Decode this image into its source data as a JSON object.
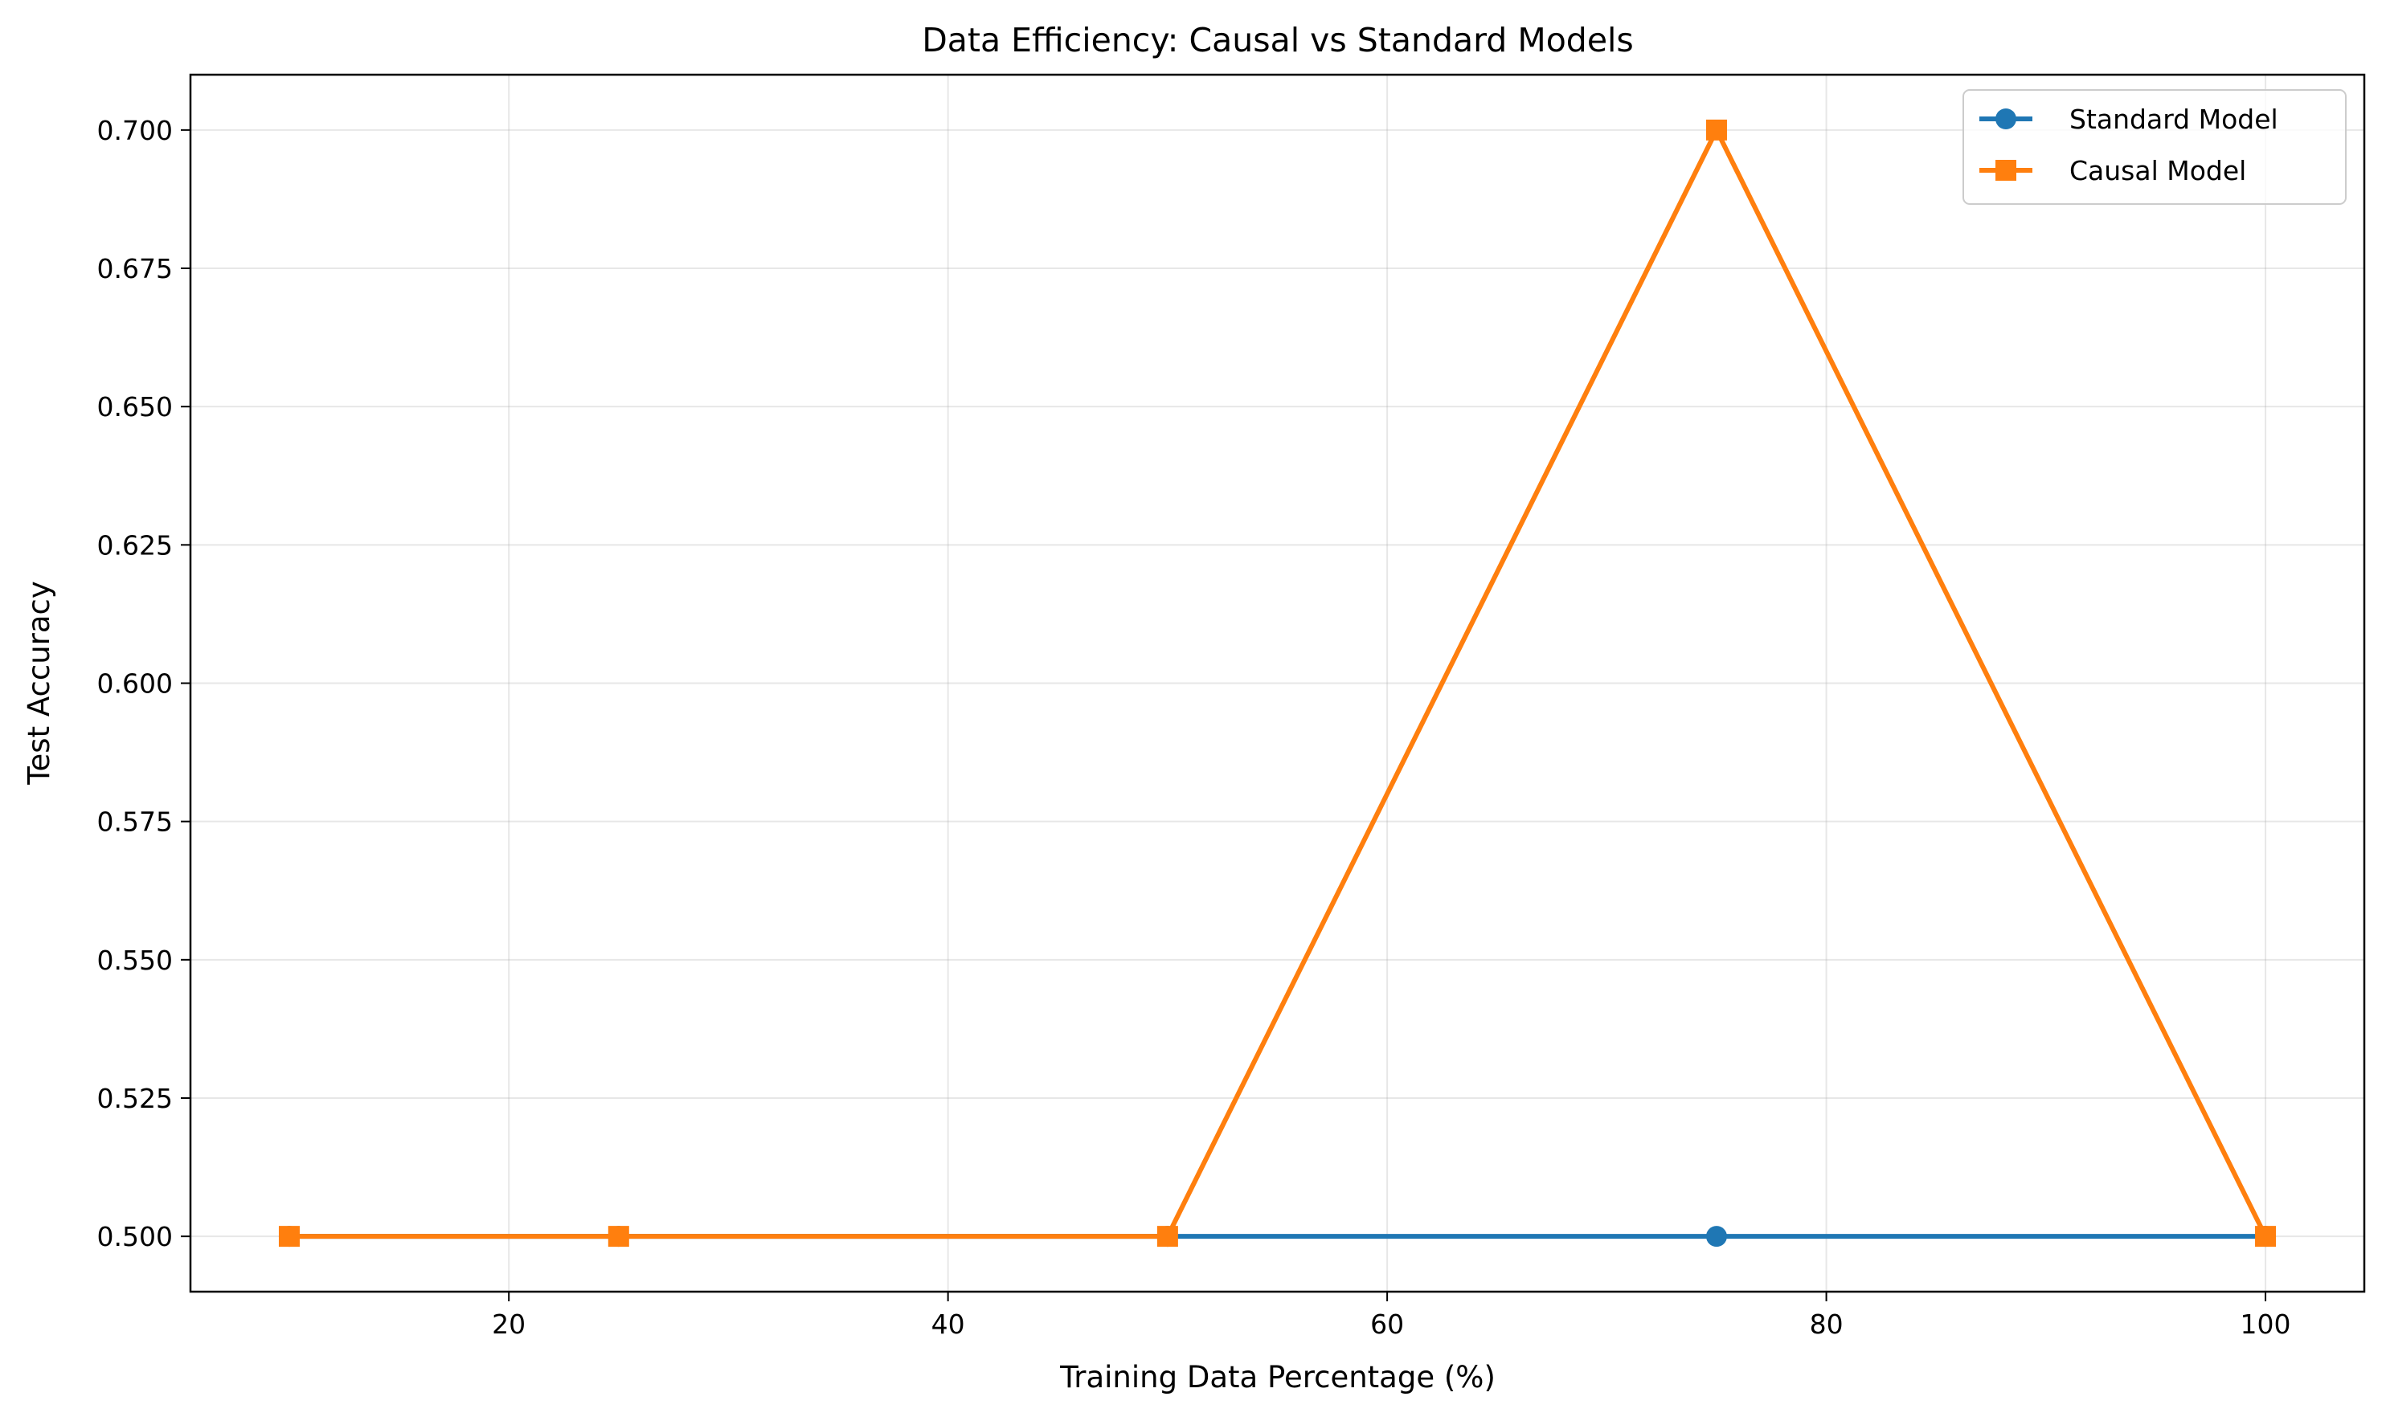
{
  "chart_data": {
    "type": "line",
    "title": "Data Efficiency: Causal vs Standard Models",
    "xlabel": "Training Data Percentage (%)",
    "ylabel": "Test Accuracy",
    "xlim": [
      5.5,
      104.5
    ],
    "ylim": [
      0.49,
      0.71
    ],
    "x_ticks": [
      20,
      40,
      60,
      80,
      100
    ],
    "x_tick_labels": [
      "20",
      "40",
      "60",
      "80",
      "100"
    ],
    "y_ticks": [
      0.5,
      0.525,
      0.55,
      0.575,
      0.6,
      0.625,
      0.65,
      0.675,
      0.7
    ],
    "y_tick_labels": [
      "0.500",
      "0.525",
      "0.550",
      "0.575",
      "0.600",
      "0.625",
      "0.650",
      "0.675",
      "0.700"
    ],
    "grid": true,
    "legend_position": "top-right",
    "series": [
      {
        "name": "Standard Model",
        "color": "#1f77b4",
        "marker": "circle",
        "x": [
          10,
          25,
          50,
          75,
          100
        ],
        "y": [
          0.5,
          0.5,
          0.5,
          0.5,
          0.5
        ]
      },
      {
        "name": "Causal Model",
        "color": "#ff7f0e",
        "marker": "square",
        "x": [
          10,
          25,
          50,
          75,
          100
        ],
        "y": [
          0.5,
          0.5,
          0.5,
          0.7,
          0.5
        ]
      }
    ]
  }
}
